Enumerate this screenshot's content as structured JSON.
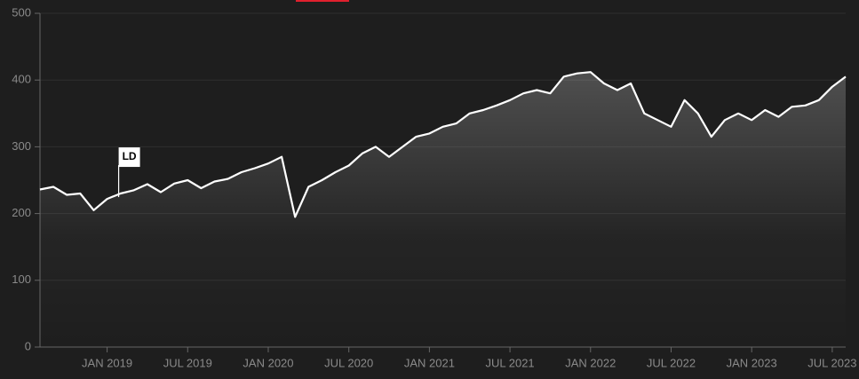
{
  "chart_data": {
    "type": "line",
    "x": [
      "2018-08",
      "2018-09",
      "2018-10",
      "2018-11",
      "2018-12",
      "2019-01",
      "2019-02",
      "2019-03",
      "2019-04",
      "2019-05",
      "2019-06",
      "2019-07",
      "2019-08",
      "2019-09",
      "2019-10",
      "2019-11",
      "2019-12",
      "2020-01",
      "2020-02",
      "2020-03",
      "2020-04",
      "2020-05",
      "2020-06",
      "2020-07",
      "2020-08",
      "2020-09",
      "2020-10",
      "2020-11",
      "2020-12",
      "2021-01",
      "2021-02",
      "2021-03",
      "2021-04",
      "2021-05",
      "2021-06",
      "2021-07",
      "2021-08",
      "2021-09",
      "2021-10",
      "2021-11",
      "2021-12",
      "2022-01",
      "2022-02",
      "2022-03",
      "2022-04",
      "2022-05",
      "2022-06",
      "2022-07",
      "2022-08",
      "2022-09",
      "2022-10",
      "2022-11",
      "2022-12",
      "2023-01",
      "2023-02",
      "2023-03",
      "2023-04",
      "2023-05",
      "2023-06",
      "2023-07",
      "2023-08"
    ],
    "values": [
      236,
      240,
      228,
      230,
      205,
      222,
      230,
      235,
      244,
      232,
      245,
      250,
      238,
      248,
      252,
      262,
      268,
      275,
      285,
      195,
      240,
      250,
      262,
      272,
      290,
      300,
      285,
      300,
      315,
      320,
      330,
      335,
      350,
      355,
      362,
      370,
      380,
      385,
      380,
      405,
      410,
      412,
      395,
      385,
      395,
      350,
      340,
      330,
      370,
      350,
      315,
      340,
      350,
      340,
      355,
      345,
      360,
      362,
      370,
      390,
      405
    ],
    "color": "#ffffff",
    "xlim": [
      "2018-08",
      "2023-08"
    ],
    "xticks": [
      {
        "value": "2019-01",
        "label": "JAN 2019"
      },
      {
        "value": "2019-07",
        "label": "JUL 2019"
      },
      {
        "value": "2020-01",
        "label": "JAN 2020"
      },
      {
        "value": "2020-07",
        "label": "JUL 2020"
      },
      {
        "value": "2021-01",
        "label": "JAN 2021"
      },
      {
        "value": "2021-07",
        "label": "JUL 2021"
      },
      {
        "value": "2022-01",
        "label": "JAN 2022"
      },
      {
        "value": "2022-07",
        "label": "JUL 2022"
      },
      {
        "value": "2023-01",
        "label": "JAN 2023"
      },
      {
        "value": "2023-07",
        "label": "JUL 2023"
      }
    ],
    "ylim": [
      0,
      500
    ],
    "yticks": [
      0,
      100,
      200,
      300,
      400,
      500
    ],
    "grid": true,
    "annotations": [
      {
        "text": "LD",
        "x": "2019-01"
      }
    ]
  }
}
